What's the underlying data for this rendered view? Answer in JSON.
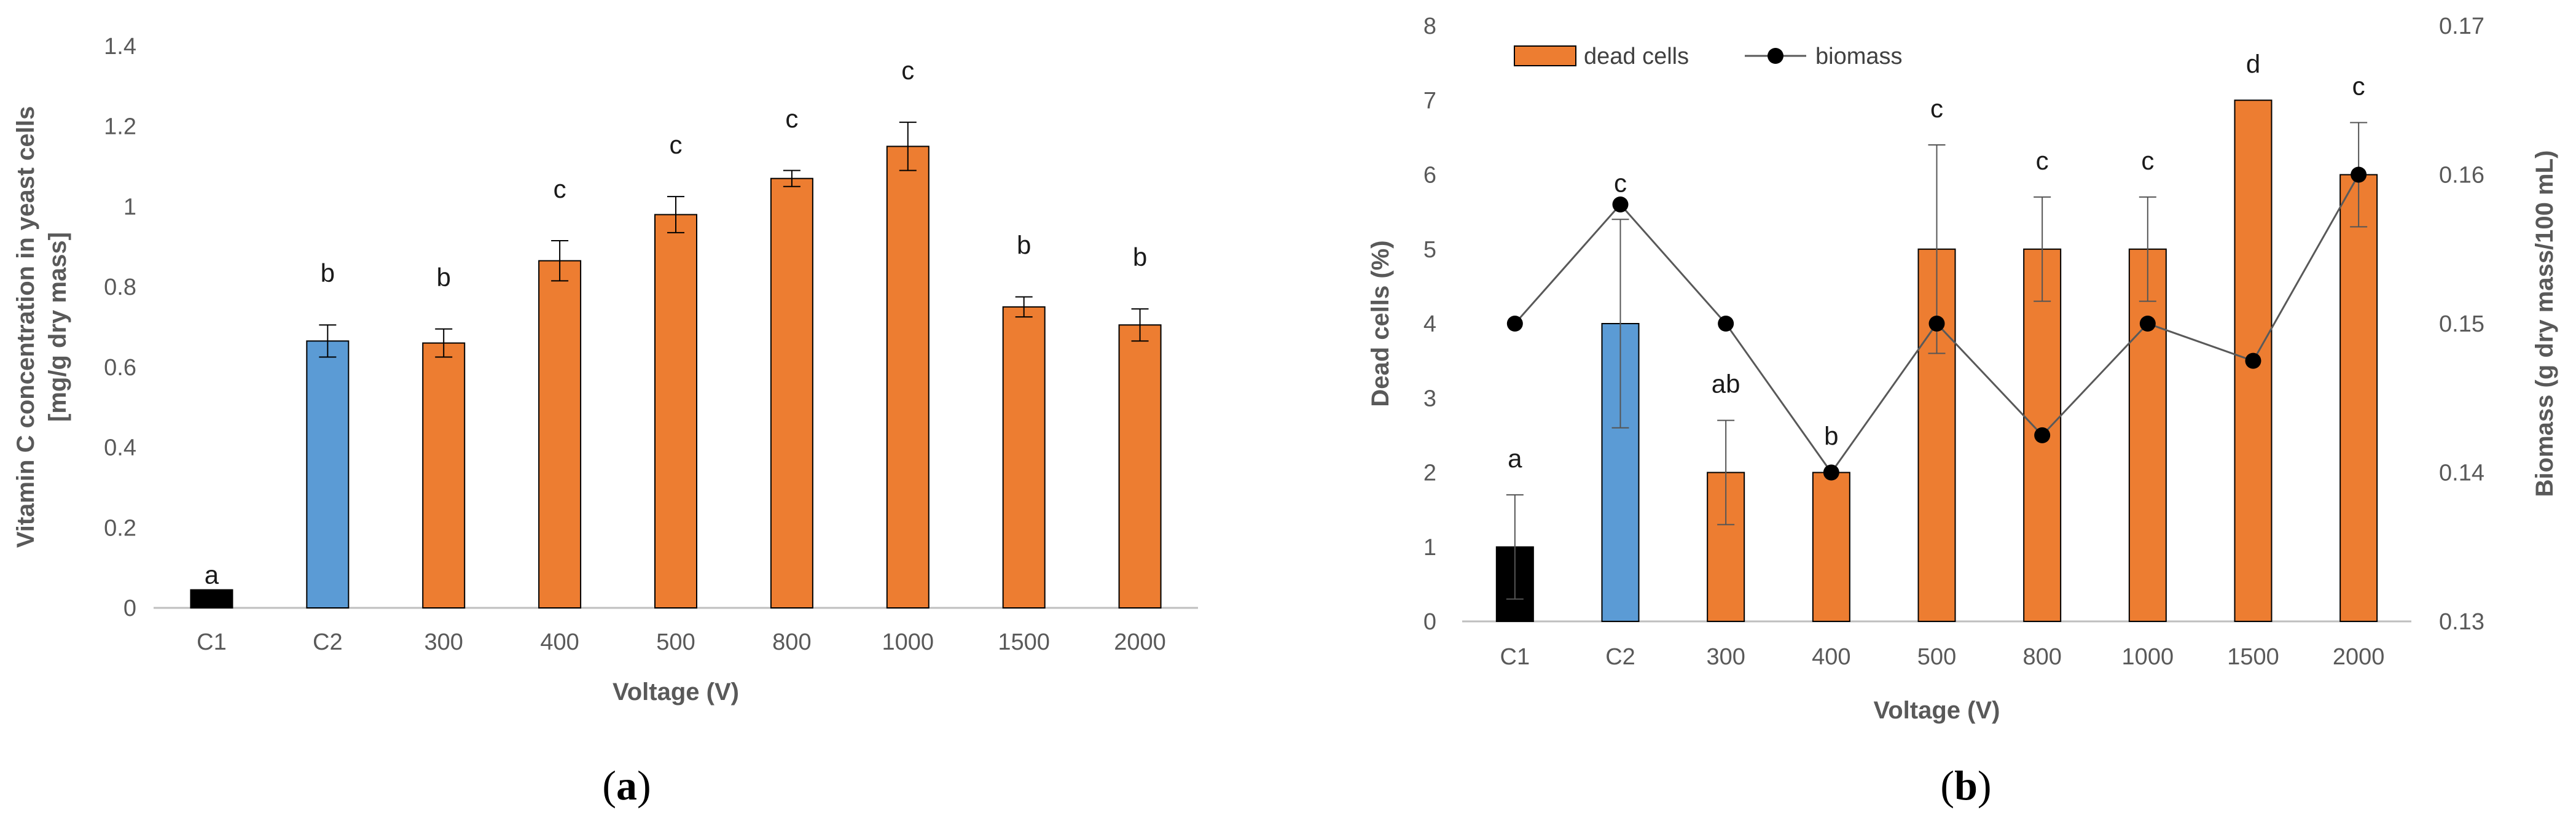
{
  "charts": {
    "a": {
      "type": "bar",
      "caption_open": "(",
      "caption_letter": "a",
      "caption_close": ")",
      "categories": [
        "C1",
        "C2",
        "300",
        "400",
        "500",
        "800",
        "1000",
        "1500",
        "2000"
      ],
      "values": [
        0.045,
        0.665,
        0.66,
        0.865,
        0.98,
        1.07,
        1.15,
        0.75,
        0.705
      ],
      "errors": [
        0.0,
        0.04,
        0.035,
        0.05,
        0.045,
        0.02,
        0.06,
        0.025,
        0.04
      ],
      "labels": [
        "a",
        "b",
        "b",
        "c",
        "c",
        "c",
        "c",
        "b",
        "b"
      ],
      "colors": [
        "#000000",
        "#5b9bd5",
        "#ed7d31",
        "#ed7d31",
        "#ed7d31",
        "#ed7d31",
        "#ed7d31",
        "#ed7d31",
        "#ed7d31"
      ],
      "ylim": [
        0,
        1.4
      ],
      "yticks": [
        "0",
        "0.2",
        "0.4",
        "0.6",
        "0.8",
        "1",
        "1.2",
        "1.4"
      ],
      "xlabel": "Voltage (V)",
      "ylabel_line1": "Vitamin C concentration in yeast cells",
      "ylabel_line2": "[mg/g dry mass]"
    },
    "b": {
      "type": "bar+line",
      "caption_open": "(",
      "caption_letter": "b",
      "caption_close": ")",
      "categories": [
        "C1",
        "C2",
        "300",
        "400",
        "500",
        "800",
        "1000",
        "1500",
        "2000"
      ],
      "bar_series_name": "dead cells",
      "line_series_name": "biomass",
      "values": [
        1,
        4,
        2,
        2,
        5,
        5,
        5,
        7,
        6
      ],
      "errors": [
        0.7,
        1.4,
        0.7,
        0.0,
        1.4,
        0.7,
        0.7,
        0.0,
        0.7
      ],
      "labels": [
        "a",
        "c",
        "ab",
        "b",
        "c",
        "c",
        "c",
        "d",
        "c"
      ],
      "colors": [
        "#000000",
        "#5b9bd5",
        "#ed7d31",
        "#ed7d31",
        "#ed7d31",
        "#ed7d31",
        "#ed7d31",
        "#ed7d31",
        "#ed7d31"
      ],
      "biomass": [
        0.15,
        0.158,
        0.15,
        0.14,
        0.15,
        0.1425,
        0.15,
        0.1475,
        0.16
      ],
      "ylim_left": [
        0,
        8
      ],
      "ylim_right": [
        0.13,
        0.17
      ],
      "yticks_left": [
        "0",
        "1",
        "2",
        "3",
        "4",
        "5",
        "6",
        "7",
        "8"
      ],
      "yticks_right": [
        "0.13",
        "0.14",
        "0.15",
        "0.16",
        "0.17"
      ],
      "xlabel": "Voltage (V)",
      "ylabel_left": "Dead cells (%)",
      "ylabel_right": "Biomass  (g dry mass/100 mL)"
    }
  }
}
